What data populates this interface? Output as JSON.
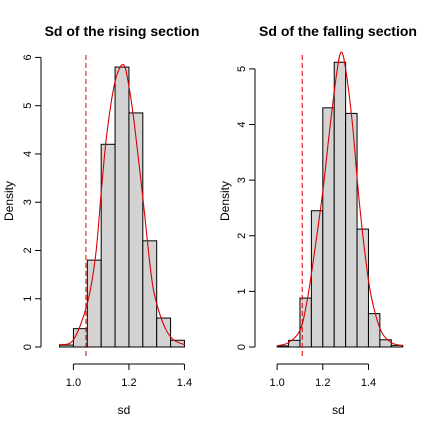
{
  "chart_data": [
    {
      "type": "histogram",
      "title": "Sd of the rising section",
      "xlabel": "sd",
      "ylabel": "Density",
      "xlim": [
        0.93,
        1.42
      ],
      "ylim": [
        0,
        6.05
      ],
      "x_ticks": [
        "1.0",
        "1.2",
        "1.4"
      ],
      "x_tick_values": [
        1.0,
        1.2,
        1.4
      ],
      "y_ticks": [
        "0",
        "1",
        "2",
        "3",
        "4",
        "5",
        "6"
      ],
      "y_tick_values": [
        0,
        1,
        2,
        3,
        4,
        5,
        6
      ],
      "bins": [
        {
          "x0": 0.95,
          "x1": 1.0,
          "density": 0.04
        },
        {
          "x0": 1.0,
          "x1": 1.05,
          "density": 0.38
        },
        {
          "x0": 1.05,
          "x1": 1.1,
          "density": 1.8
        },
        {
          "x0": 1.1,
          "x1": 1.15,
          "density": 4.2
        },
        {
          "x0": 1.15,
          "x1": 1.2,
          "density": 5.8
        },
        {
          "x0": 1.2,
          "x1": 1.25,
          "density": 4.85
        },
        {
          "x0": 1.25,
          "x1": 1.3,
          "density": 2.2
        },
        {
          "x0": 1.3,
          "x1": 1.35,
          "density": 0.6
        },
        {
          "x0": 1.35,
          "x1": 1.4,
          "density": 0.14
        }
      ],
      "density_curve": {
        "x": [
          0.95,
          1.0,
          1.05,
          1.08,
          1.1,
          1.12,
          1.15,
          1.18,
          1.2,
          1.22,
          1.25,
          1.28,
          1.3,
          1.33,
          1.36,
          1.4
        ],
        "y": [
          0.05,
          0.15,
          0.9,
          1.9,
          3.2,
          4.4,
          5.5,
          5.85,
          5.4,
          4.6,
          3.1,
          1.5,
          0.9,
          0.4,
          0.15,
          0.05
        ]
      },
      "reference_line": {
        "x": 1.045,
        "color": "#dd0000",
        "style": "dashed"
      },
      "colors": {
        "bars": "#d3d3d3",
        "curve": "#dd0000"
      }
    },
    {
      "type": "histogram",
      "title": "Sd of the falling section",
      "xlabel": "sd",
      "ylabel": "Density",
      "xlim": [
        0.96,
        1.56
      ],
      "ylim": [
        0,
        5.25
      ],
      "x_ticks": [
        "1.0",
        "1.2",
        "1.4"
      ],
      "x_tick_values": [
        1.0,
        1.2,
        1.4
      ],
      "y_ticks": [
        "0",
        "1",
        "2",
        "3",
        "4",
        "5"
      ],
      "y_tick_values": [
        0,
        1,
        2,
        3,
        4,
        5
      ],
      "bins": [
        {
          "x0": 1.0,
          "x1": 1.05,
          "density": 0.02
        },
        {
          "x0": 1.05,
          "x1": 1.1,
          "density": 0.12
        },
        {
          "x0": 1.1,
          "x1": 1.15,
          "density": 0.88
        },
        {
          "x0": 1.15,
          "x1": 1.2,
          "density": 2.45
        },
        {
          "x0": 1.2,
          "x1": 1.25,
          "density": 4.3
        },
        {
          "x0": 1.25,
          "x1": 1.3,
          "density": 5.12
        },
        {
          "x0": 1.3,
          "x1": 1.35,
          "density": 4.2
        },
        {
          "x0": 1.35,
          "x1": 1.4,
          "density": 2.12
        },
        {
          "x0": 1.4,
          "x1": 1.45,
          "density": 0.6
        },
        {
          "x0": 1.45,
          "x1": 1.5,
          "density": 0.13
        },
        {
          "x0": 1.5,
          "x1": 1.55,
          "density": 0.03
        }
      ],
      "density_curve": {
        "x": [
          1.0,
          1.05,
          1.1,
          1.13,
          1.16,
          1.2,
          1.23,
          1.26,
          1.28,
          1.3,
          1.33,
          1.36,
          1.4,
          1.43,
          1.46,
          1.5,
          1.55
        ],
        "y": [
          0.02,
          0.08,
          0.3,
          0.8,
          1.6,
          2.8,
          3.9,
          4.9,
          5.3,
          5.0,
          4.0,
          2.6,
          1.2,
          0.6,
          0.25,
          0.08,
          0.02
        ]
      },
      "reference_line": {
        "x": 1.11,
        "color": "#dd0000",
        "style": "dashed"
      },
      "colors": {
        "bars": "#d3d3d3",
        "curve": "#dd0000"
      }
    }
  ]
}
